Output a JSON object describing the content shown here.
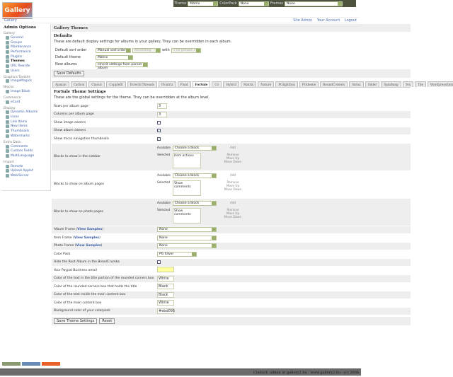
{
  "topbar": {
    "theme_label": "Theme",
    "theme_value": "Matrix",
    "colorpack_label": "ColorPack",
    "colorpack_value": "None",
    "frames_label": "Frames",
    "frames_value": "None"
  },
  "logo": {
    "text": "Gallery"
  },
  "breadcrumb": {
    "root": "Gallery",
    "links": [
      "Site Admin",
      "Your Account",
      "Logout"
    ]
  },
  "sidebar": {
    "title": "Admin Options",
    "groups": [
      {
        "label": "Gallery",
        "items": [
          "General",
          "Groups",
          "Maintenance",
          "Performance",
          "Plugins",
          "Themes",
          "URL Rewrite",
          "Users"
        ]
      },
      {
        "label": "Graphics Toolkits",
        "items": [
          "ImageMagick"
        ]
      },
      {
        "label": "Blocks",
        "items": [
          "Image Block"
        ]
      },
      {
        "label": "Commerce",
        "items": [
          "eCard"
        ]
      },
      {
        "label": "Display",
        "items": [
          "Dynamic Albums",
          "Icons",
          "Link Items",
          "New Items",
          "Thumbnails",
          "Watermarks"
        ]
      },
      {
        "label": "Extra Data",
        "items": [
          "Comments",
          "Custom Fields",
          "MultiLanguage"
        ]
      },
      {
        "label": "Import",
        "items": [
          "Remote",
          "Upload Applet",
          "Web/Server"
        ]
      }
    ],
    "current": "Themes"
  },
  "main": {
    "title": "Gallery Themes",
    "defaults": {
      "heading": "Defaults",
      "description": "These are default display settings for albums in your gallery. They can be overridden in each album.",
      "sort_label": "Default sort order",
      "sort_value": "Manual sort order",
      "direction_value": "Ascending",
      "with_label": "with",
      "presort_value": "« no presort »",
      "theme_label": "Default theme",
      "theme_value": "Matrix",
      "new_albums_label": "New albums",
      "new_albums_value": "Inherit settings from parent album",
      "save_button": "Save Defaults"
    },
    "tabs": [
      "Ajaxian",
      "Carbon",
      "Classic",
      "Copplefit",
      "EclecticThreads",
      "Floatrix",
      "Fluid",
      "ForSale",
      "G1",
      "Hybrid",
      "Matrix",
      "Nature",
      "PGlightbox",
      "PGtheme",
      "RoundCorners",
      "Siriux",
      "Slider",
      "SplaBang",
      "Tex",
      "Tile",
      "WordpressEmbedded"
    ],
    "active_tab": "ForSale",
    "theme": {
      "heading": "ForSale Theme Settings",
      "description": "These are the global settings for the theme. They can be overridden at the album level.",
      "rows_label": "Rows per album page",
      "rows_value": "3",
      "cols_label": "Columns per album page",
      "cols_value": "3",
      "image_owners_label": "Show image owners",
      "image_owners": false,
      "album_owners_label": "Show album owners",
      "album_owners": true,
      "micro_label": "Show micro navigation thumbnails",
      "micro": true,
      "blocks": [
        {
          "label": "Blocks to show in the sidebar",
          "available_label": "Available",
          "available_value": "Choose a block",
          "add": "Add",
          "selected_label": "Selected",
          "selected": "Item actions",
          "remove": "Remove",
          "up": "Move Up",
          "down": "Move Down"
        },
        {
          "label": "Blocks to show on album pages",
          "available_label": "Available",
          "available_value": "Choose a block",
          "add": "Add",
          "selected_label": "Selected",
          "selected": "Show comments",
          "remove": "Remove",
          "up": "Move Up",
          "down": "Move Down"
        },
        {
          "label": "Blocks to show on photo pages",
          "available_label": "Available",
          "available_value": "Choose a block",
          "add": "Add",
          "selected_label": "Selected",
          "selected": "Show comments",
          "remove": "Remove",
          "up": "Move Up",
          "down": "Move Down"
        }
      ],
      "view_samples": "View Samples",
      "album_frame_label": "Album Frame",
      "album_frame_value": "None",
      "item_frame_label": "Item Frame",
      "item_frame_value": "None",
      "photo_frame_label": "Photo Frame",
      "photo_frame_value": "None",
      "colorpack_label": "Color Pack",
      "colorpack_value": "PG Silver",
      "hide_root_label": "Hide the Root Album in the BreadCrumbs",
      "hide_root": false,
      "paypal_label": "Your Paypal Business email",
      "paypal_value": "",
      "title_text_label": "Color of the text in the title portion of the rounded corners box",
      "title_text_value": "White",
      "title_box_label": "Color of the rounded corners box that holds the title",
      "title_box_value": "Black",
      "content_text_label": "Color of the text inside the main content box",
      "content_text_value": "Black",
      "content_box_label": "Color of the main content box",
      "content_box_value": "White",
      "bg_label": "Background color of your colorpack",
      "bg_value": "#ebd095",
      "save_button": "Save Theme Settings",
      "reset_button": "Reset"
    }
  },
  "footer": {
    "text": "Contact: admin at gallery2.hu - www.gallery2.hu - (c) 2006"
  }
}
